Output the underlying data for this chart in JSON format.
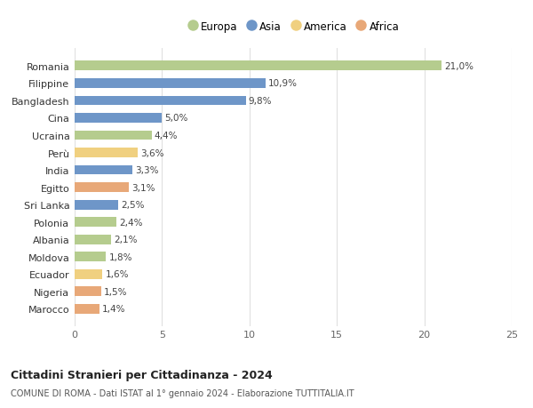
{
  "categories": [
    "Marocco",
    "Nigeria",
    "Ecuador",
    "Moldova",
    "Albania",
    "Polonia",
    "Sri Lanka",
    "Egitto",
    "India",
    "Perù",
    "Ucraina",
    "Cina",
    "Bangladesh",
    "Filippine",
    "Romania"
  ],
  "values": [
    1.4,
    1.5,
    1.6,
    1.8,
    2.1,
    2.4,
    2.5,
    3.1,
    3.3,
    3.6,
    4.4,
    5.0,
    9.8,
    10.9,
    21.0
  ],
  "labels": [
    "1,4%",
    "1,5%",
    "1,6%",
    "1,8%",
    "2,1%",
    "2,4%",
    "2,5%",
    "3,1%",
    "3,3%",
    "3,6%",
    "4,4%",
    "5,0%",
    "9,8%",
    "10,9%",
    "21,0%"
  ],
  "continents": [
    "Africa",
    "Africa",
    "America",
    "Europa",
    "Europa",
    "Europa",
    "Asia",
    "Africa",
    "Asia",
    "America",
    "Europa",
    "Asia",
    "Asia",
    "Asia",
    "Europa"
  ],
  "legend_labels": [
    "Europa",
    "Asia",
    "America",
    "Africa"
  ],
  "legend_colors": [
    "#b5cc8e",
    "#6e96c8",
    "#f0d080",
    "#e8a878"
  ],
  "europa_color": "#b5cc8e",
  "asia_color": "#6e96c8",
  "america_color": "#f0d080",
  "africa_color": "#e8a878",
  "title": "Cittadini Stranieri per Cittadinanza - 2024",
  "subtitle": "COMUNE DI ROMA - Dati ISTAT al 1° gennaio 2024 - Elaborazione TUTTITALIA.IT",
  "xlim": [
    0,
    25
  ],
  "xticks": [
    0,
    5,
    10,
    15,
    20,
    25
  ],
  "bg_color": "#ffffff",
  "grid_color": "#e0e0e0",
  "bar_height": 0.55
}
